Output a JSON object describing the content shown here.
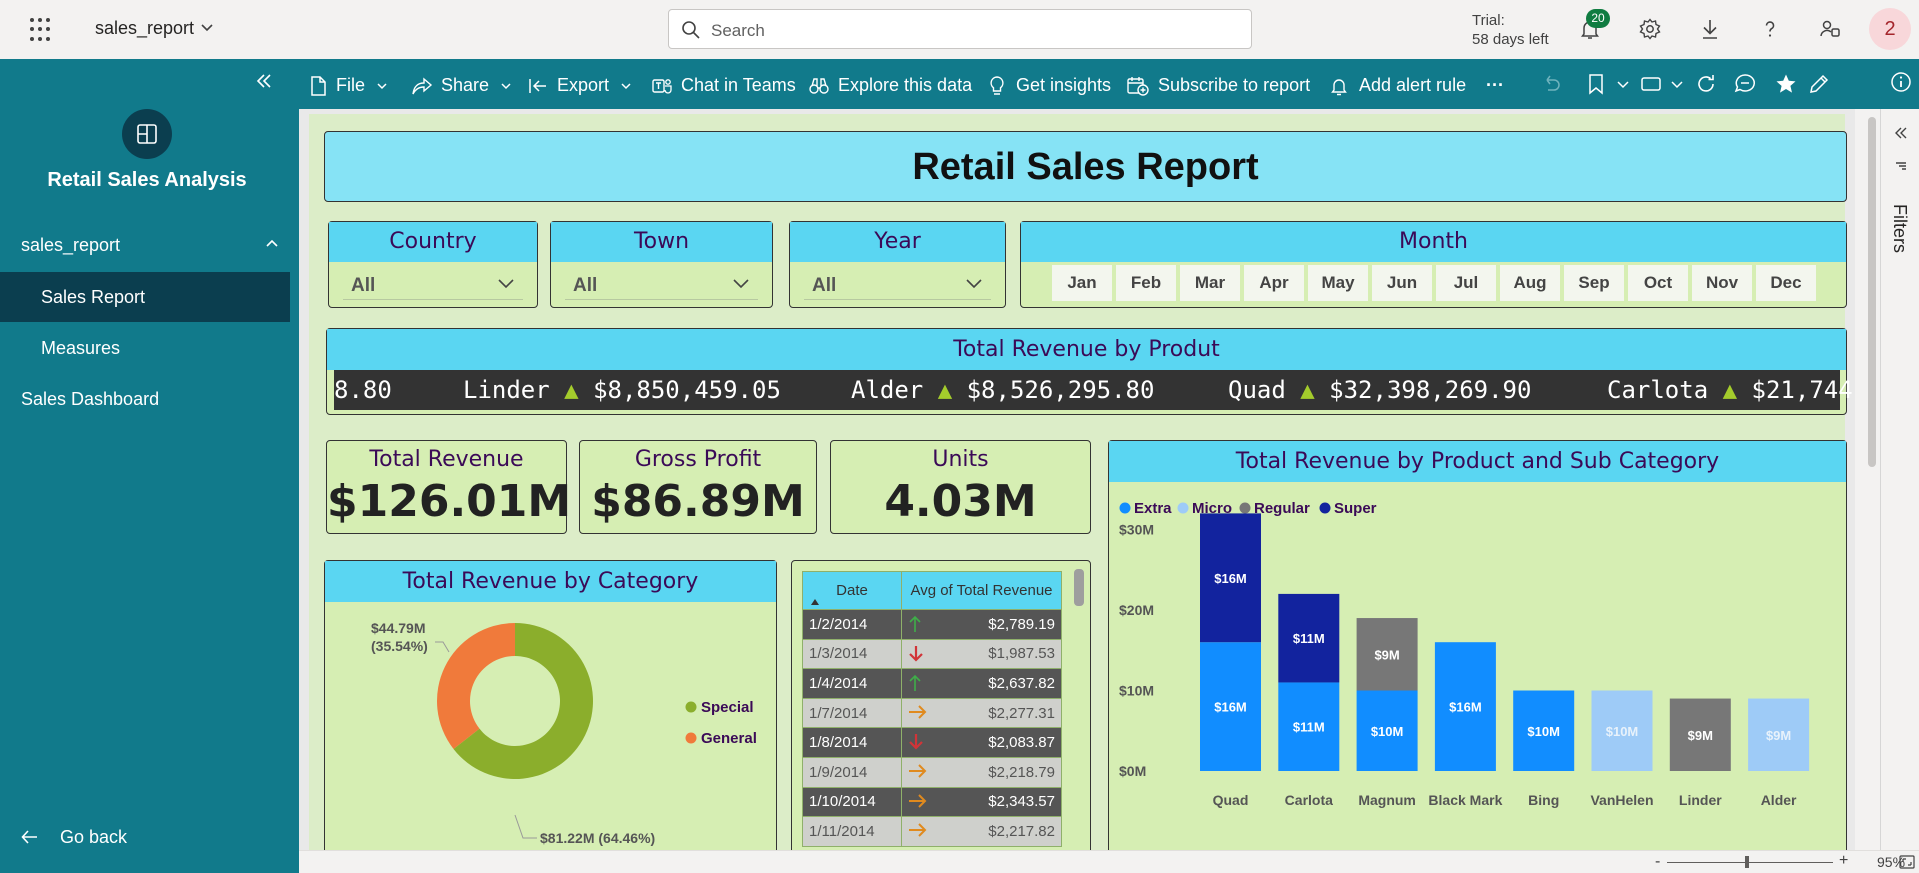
{
  "header": {
    "report_name": "sales_report",
    "search_placeholder": "Search",
    "trial_line1": "Trial:",
    "trial_line2": "58 days left",
    "notification_count": "20",
    "avatar_initial": "2"
  },
  "nav": {
    "workspace_title": "Retail Sales Analysis",
    "items": [
      {
        "label": "sales_report"
      },
      {
        "label": "Sales Report"
      },
      {
        "label": "Measures"
      },
      {
        "label": "Sales Dashboard"
      }
    ],
    "go_back": "Go back"
  },
  "toolbar": {
    "file": "File",
    "share": "Share",
    "export": "Export",
    "chat": "Chat in Teams",
    "explore": "Explore this data",
    "insights": "Get insights",
    "subscribe": "Subscribe to report",
    "alert": "Add alert rule",
    "more": "···"
  },
  "report": {
    "title": "Retail Sales Report",
    "slicers": {
      "country": {
        "label": "Country",
        "value": "All"
      },
      "town": {
        "label": "Town",
        "value": "All"
      },
      "year": {
        "label": "Year",
        "value": "All"
      },
      "month": {
        "label": "Month",
        "options": [
          "Jan",
          "Feb",
          "Mar",
          "Apr",
          "May",
          "Jun",
          "Jul",
          "Aug",
          "Sep",
          "Oct",
          "Nov",
          "Dec"
        ]
      }
    },
    "ticker": {
      "title": "Total Revenue by Produt",
      "items": [
        {
          "product": "",
          "value": "8.80",
          "arrow": ""
        },
        {
          "product": "Linder",
          "value": "$8,850,459.05",
          "arrow": "▲"
        },
        {
          "product": "Alder",
          "value": "$8,526,295.80",
          "arrow": "▲"
        },
        {
          "product": "Quad",
          "value": "$32,398,269.90",
          "arrow": "▲"
        },
        {
          "product": "Carlota",
          "value": "$21,744",
          "arrow": "▲"
        }
      ]
    },
    "kpis": {
      "revenue": {
        "label": "Total Revenue",
        "value": "$126.01M"
      },
      "profit": {
        "label": "Gross Profit",
        "value": "$86.89M"
      },
      "units": {
        "label": "Units",
        "value": "4.03M"
      }
    },
    "donut": {
      "title": "Total Revenue by Category",
      "label_general_a": "$44.79M",
      "label_general_b": "(35.54%)",
      "label_special": "$81.22M (64.46%)",
      "legend": [
        {
          "name": "Special",
          "color": "#8bae2c"
        },
        {
          "name": "General",
          "color": "#f07a3b"
        }
      ]
    },
    "table": {
      "col_date": "Date",
      "col_avg": "Avg of Total Revenue",
      "rows": [
        {
          "date": "1/2/2014",
          "trend": "up",
          "value": "$2,789.19"
        },
        {
          "date": "1/3/2014",
          "trend": "down",
          "value": "$1,987.53"
        },
        {
          "date": "1/4/2014",
          "trend": "up",
          "value": "$2,637.82"
        },
        {
          "date": "1/7/2014",
          "trend": "right",
          "value": "$2,277.31"
        },
        {
          "date": "1/8/2014",
          "trend": "down",
          "value": "$2,083.87"
        },
        {
          "date": "1/9/2014",
          "trend": "right",
          "value": "$2,218.79"
        },
        {
          "date": "1/10/2014",
          "trend": "right",
          "value": "$2,343.57"
        },
        {
          "date": "1/11/2014",
          "trend": "right",
          "value": "$2,217.82"
        }
      ]
    },
    "bar_title": "Total Revenue by Product and Sub Category",
    "bar_legend": [
      {
        "name": "Extra",
        "color": "#118dff"
      },
      {
        "name": "Micro",
        "color": "#9ecbf7"
      },
      {
        "name": "Regular",
        "color": "#777777"
      },
      {
        "name": "Super",
        "color": "#12239e"
      }
    ]
  },
  "chart_data": [
    {
      "type": "pie",
      "title": "Total Revenue by Category",
      "categories": [
        "Special",
        "General"
      ],
      "values": [
        81.22,
        44.79
      ],
      "percent": [
        64.46,
        35.54
      ],
      "units": "$M",
      "legend": "right"
    },
    {
      "type": "bar",
      "stacked": true,
      "title": "Total Revenue by Product and Sub Category",
      "categories": [
        "Quad",
        "Carlota",
        "Magnum",
        "Black Mark",
        "Bing",
        "VanHelen",
        "Linder",
        "Alder"
      ],
      "series": [
        {
          "name": "Extra",
          "values": [
            16,
            11,
            10,
            16,
            10,
            0,
            0,
            0
          ]
        },
        {
          "name": "Micro",
          "values": [
            0,
            0,
            0,
            0,
            0,
            10,
            0,
            9
          ]
        },
        {
          "name": "Regular",
          "values": [
            0,
            0,
            9,
            0,
            0,
            0,
            9,
            0
          ]
        },
        {
          "name": "Super",
          "values": [
            16,
            11,
            0,
            0,
            0,
            0,
            0,
            0
          ]
        }
      ],
      "data_labels": [
        [
          "$16M",
          "$11M",
          "$10M",
          "$16M",
          "$10M",
          "",
          "",
          ""
        ],
        [
          "",
          "",
          "",
          "",
          "",
          "$10M",
          "",
          "$9M"
        ],
        [
          "",
          "",
          "$9M",
          "",
          "",
          "",
          "$9M",
          ""
        ],
        [
          "$16M",
          "$11M",
          "",
          "",
          "",
          "",
          "",
          ""
        ]
      ],
      "yticks": [
        "$0M",
        "$10M",
        "$20M",
        "$30M"
      ],
      "ylim": [
        0,
        32
      ],
      "legend": "top-left"
    }
  ],
  "statusbar": {
    "minus": "-",
    "plus": "+",
    "zoom": "95%"
  }
}
